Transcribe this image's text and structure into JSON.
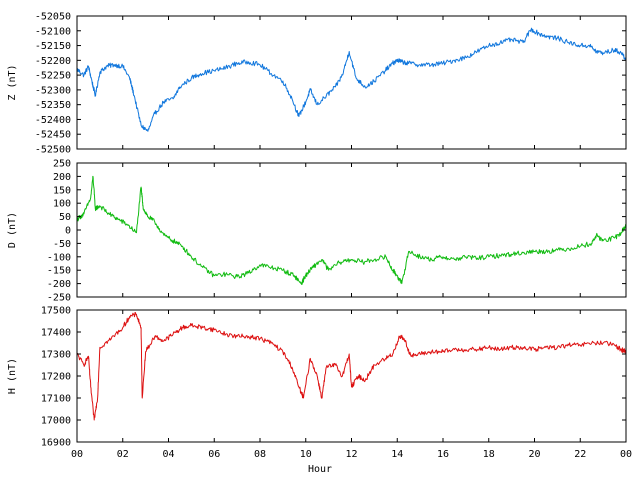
{
  "chart_data": [
    {
      "type": "line",
      "ylabel": "Z (nT)",
      "ylim": [
        -52500,
        -52050
      ],
      "yticks": [
        -52050,
        -52100,
        -52150,
        -52200,
        -52250,
        -52300,
        -52350,
        -52400,
        -52450,
        -52500
      ],
      "xlim": [
        0,
        24
      ],
      "grid": false,
      "series": [
        {
          "color": "#1177dd",
          "x": [
            0,
            0.3,
            0.5,
            0.65,
            0.8,
            1.0,
            1.3,
            1.6,
            2.0,
            2.3,
            2.5,
            2.8,
            3.1,
            3.4,
            3.8,
            4.2,
            4.5,
            5.0,
            5.4,
            6.0,
            6.5,
            7.0,
            7.5,
            8.0,
            8.5,
            9.0,
            9.4,
            9.7,
            10.0,
            10.2,
            10.5,
            10.9,
            11.3,
            11.6,
            11.9,
            12.2,
            12.6,
            13.0,
            13.4,
            13.8,
            14.0,
            14.2,
            14.5,
            15.0,
            15.5,
            16.0,
            16.5,
            17.0,
            17.5,
            18.0,
            18.5,
            19.0,
            19.5,
            19.85,
            20.2,
            20.6,
            21.0,
            21.5,
            22.0,
            22.4,
            22.7,
            23.0,
            23.5,
            23.8,
            24.0
          ],
          "values": [
            -52230,
            -52250,
            -52220,
            -52270,
            -52320,
            -52240,
            -52220,
            -52215,
            -52220,
            -52260,
            -52320,
            -52420,
            -52440,
            -52380,
            -52340,
            -52330,
            -52290,
            -52260,
            -52245,
            -52235,
            -52225,
            -52210,
            -52205,
            -52215,
            -52245,
            -52270,
            -52330,
            -52390,
            -52340,
            -52300,
            -52350,
            -52320,
            -52290,
            -52250,
            -52170,
            -52260,
            -52290,
            -52270,
            -52240,
            -52210,
            -52200,
            -52205,
            -52210,
            -52215,
            -52215,
            -52210,
            -52200,
            -52190,
            -52170,
            -52150,
            -52140,
            -52130,
            -52140,
            -52095,
            -52110,
            -52120,
            -52125,
            -52140,
            -52150,
            -52150,
            -52170,
            -52175,
            -52165,
            -52175,
            -52195
          ]
        }
      ]
    },
    {
      "type": "line",
      "ylabel": "D (nT)",
      "ylim": [
        -250,
        250
      ],
      "yticks": [
        250,
        200,
        150,
        100,
        50,
        0,
        -50,
        -100,
        -150,
        -200,
        -250
      ],
      "xlim": [
        0,
        24
      ],
      "grid": false,
      "series": [
        {
          "color": "#11bb11",
          "x": [
            0,
            0.3,
            0.6,
            0.7,
            0.8,
            1.0,
            1.4,
            1.8,
            2.2,
            2.6,
            2.8,
            2.9,
            3.1,
            3.4,
            3.8,
            4.2,
            4.6,
            5.0,
            5.5,
            6.0,
            6.5,
            7.0,
            7.5,
            8.0,
            8.5,
            9.0,
            9.5,
            9.8,
            10.0,
            10.3,
            10.7,
            11.0,
            11.5,
            12.0,
            12.5,
            13.0,
            13.5,
            13.8,
            14.0,
            14.2,
            14.5,
            15.0,
            15.5,
            16.0,
            16.5,
            17.0,
            17.5,
            18.0,
            18.5,
            19.0,
            19.5,
            20.0,
            20.5,
            21.0,
            21.5,
            22.0,
            22.5,
            22.7,
            23.0,
            23.5,
            23.8,
            24.0
          ],
          "values": [
            40,
            60,
            120,
            200,
            80,
            90,
            60,
            40,
            20,
            -10,
            160,
            80,
            50,
            30,
            -20,
            -40,
            -60,
            -100,
            -140,
            -170,
            -165,
            -175,
            -160,
            -130,
            -140,
            -150,
            -170,
            -200,
            -170,
            -140,
            -110,
            -150,
            -120,
            -110,
            -120,
            -110,
            -100,
            -150,
            -170,
            -200,
            -80,
            -100,
            -110,
            -100,
            -110,
            -100,
            -105,
            -100,
            -95,
            -90,
            -85,
            -80,
            -80,
            -75,
            -70,
            -60,
            -50,
            -20,
            -40,
            -30,
            -10,
            20
          ]
        }
      ]
    },
    {
      "type": "line",
      "ylabel": "H (nT)",
      "ylim": [
        16900,
        17500
      ],
      "yticks": [
        17500,
        17400,
        17300,
        17200,
        17100,
        17000,
        16900
      ],
      "xlim": [
        0,
        24
      ],
      "grid": false,
      "xlabel": "Hour",
      "xticks": [
        "00",
        "02",
        "04",
        "06",
        "08",
        "10",
        "12",
        "14",
        "16",
        "18",
        "20",
        "22",
        "00"
      ],
      "series": [
        {
          "color": "#dd1111",
          "x": [
            0,
            0.3,
            0.5,
            0.6,
            0.75,
            0.9,
            1.0,
            1.5,
            2.0,
            2.3,
            2.6,
            2.8,
            2.85,
            3.0,
            3.4,
            3.8,
            4.2,
            4.6,
            5.0,
            5.5,
            6.0,
            6.5,
            7.0,
            7.5,
            8.0,
            8.5,
            9.0,
            9.4,
            9.7,
            9.9,
            10.2,
            10.5,
            10.7,
            10.9,
            11.3,
            11.6,
            11.9,
            12.0,
            12.3,
            12.6,
            13.0,
            13.5,
            13.8,
            14.1,
            14.3,
            14.6,
            15.0,
            15.5,
            16.0,
            16.5,
            17.0,
            17.5,
            18.0,
            18.5,
            19.0,
            19.5,
            20.0,
            20.5,
            21.0,
            21.5,
            22.0,
            22.5,
            23.0,
            23.5,
            23.8,
            24.0
          ],
          "values": [
            17300,
            17250,
            17290,
            17150,
            17000,
            17100,
            17330,
            17370,
            17420,
            17470,
            17480,
            17420,
            17100,
            17310,
            17380,
            17360,
            17390,
            17420,
            17430,
            17420,
            17410,
            17390,
            17380,
            17380,
            17370,
            17350,
            17310,
            17240,
            17150,
            17100,
            17280,
            17200,
            17100,
            17240,
            17250,
            17200,
            17300,
            17150,
            17200,
            17180,
            17250,
            17280,
            17300,
            17380,
            17370,
            17290,
            17300,
            17310,
            17310,
            17320,
            17320,
            17320,
            17330,
            17320,
            17330,
            17330,
            17320,
            17330,
            17330,
            17340,
            17340,
            17350,
            17350,
            17340,
            17320,
            17310
          ]
        }
      ]
    }
  ]
}
